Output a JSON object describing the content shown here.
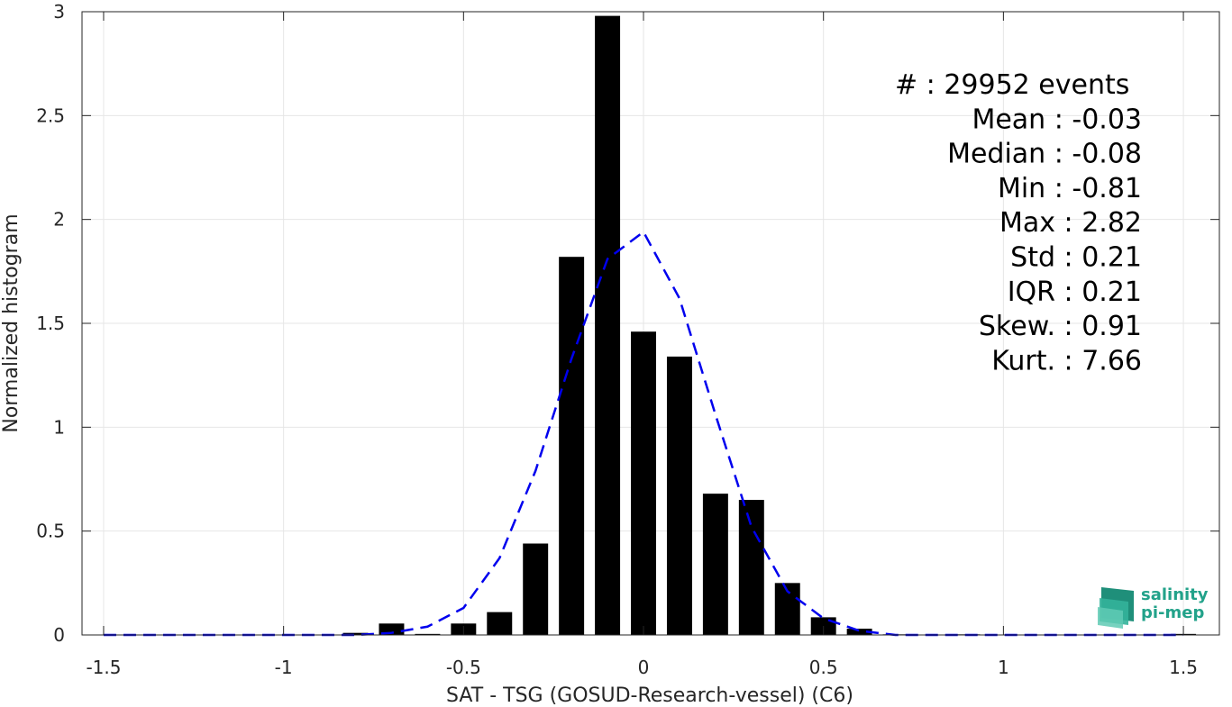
{
  "chart_data": {
    "type": "bar",
    "xlabel": "SAT - TSG (GOSUD-Research-vessel) (C6)",
    "ylabel": "Normalized histogram",
    "xlim": [
      -1.56,
      1.6
    ],
    "ylim": [
      0,
      3
    ],
    "grid": true,
    "x_ticks": [
      -1.5,
      -1,
      -0.5,
      0,
      0.5,
      1,
      1.5
    ],
    "x_tick_labels": [
      "-1.5",
      "-1",
      "-0.5",
      "0",
      "0.5",
      "1",
      "1.5"
    ],
    "y_ticks": [
      0,
      0.5,
      1,
      1.5,
      2,
      2.5,
      3
    ],
    "y_tick_labels": [
      "0",
      "0.5",
      "1",
      "1.5",
      "2",
      "2.5",
      "3"
    ],
    "bar_width": 0.07,
    "bar_color": "#000000",
    "bars": [
      {
        "x": -0.8,
        "y": 0.01
      },
      {
        "x": -0.7,
        "y": 0.055
      },
      {
        "x": -0.6,
        "y": 0.005
      },
      {
        "x": -0.5,
        "y": 0.055
      },
      {
        "x": -0.4,
        "y": 0.11
      },
      {
        "x": -0.3,
        "y": 0.44
      },
      {
        "x": -0.2,
        "y": 1.82
      },
      {
        "x": -0.1,
        "y": 2.98
      },
      {
        "x": 0.0,
        "y": 1.46
      },
      {
        "x": 0.1,
        "y": 1.34
      },
      {
        "x": 0.2,
        "y": 0.68
      },
      {
        "x": 0.3,
        "y": 0.65
      },
      {
        "x": 0.4,
        "y": 0.25
      },
      {
        "x": 0.5,
        "y": 0.085
      },
      {
        "x": 0.6,
        "y": 0.03
      },
      {
        "x": 0.7,
        "y": 0.003
      },
      {
        "x": 0.9,
        "y": 0.003
      },
      {
        "x": 1.5,
        "y": 0.005
      }
    ],
    "fit_color": "#0000ee",
    "fit_curve": [
      {
        "x": -1.5,
        "y": 0.0
      },
      {
        "x": -1.0,
        "y": 0.0
      },
      {
        "x": -0.8,
        "y": 0.0
      },
      {
        "x": -0.7,
        "y": 0.01
      },
      {
        "x": -0.6,
        "y": 0.04
      },
      {
        "x": -0.5,
        "y": 0.13
      },
      {
        "x": -0.4,
        "y": 0.37
      },
      {
        "x": -0.3,
        "y": 0.79
      },
      {
        "x": -0.2,
        "y": 1.33
      },
      {
        "x": -0.1,
        "y": 1.81
      },
      {
        "x": 0.0,
        "y": 1.94
      },
      {
        "x": 0.1,
        "y": 1.62
      },
      {
        "x": 0.2,
        "y": 1.06
      },
      {
        "x": 0.3,
        "y": 0.52
      },
      {
        "x": 0.4,
        "y": 0.21
      },
      {
        "x": 0.5,
        "y": 0.08
      },
      {
        "x": 0.6,
        "y": 0.02
      },
      {
        "x": 0.7,
        "y": 0.0
      },
      {
        "x": 1.0,
        "y": 0.0
      },
      {
        "x": 1.5,
        "y": 0.0
      }
    ],
    "annotations": [
      "#  : 29952 events",
      "Mean : -0.03",
      "Median : -0.08",
      "Min : -0.81",
      "Max : 2.82",
      "Std : 0.21",
      "IQR : 0.21",
      "Skew. : 0.91",
      "Kurt. : 7.66"
    ]
  },
  "logo": {
    "line1": "salinity",
    "line2": "pi-mep",
    "color": "#22a28a"
  }
}
